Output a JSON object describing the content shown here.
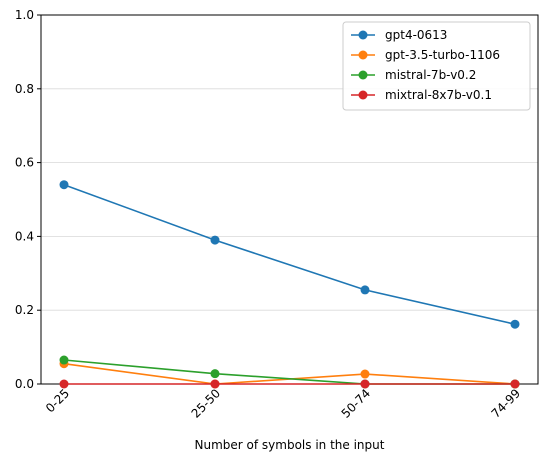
{
  "chart_data": {
    "type": "line",
    "title": "",
    "xlabel": "Number of symbols in the input",
    "ylabel": "",
    "categories": [
      "0-25",
      "25-50",
      "50-74",
      "74-99"
    ],
    "ylim": [
      0,
      1.0
    ],
    "yticks": [
      0.0,
      0.2,
      0.4,
      0.6,
      0.8,
      1.0
    ],
    "ytick_labels": [
      "0.0",
      "0.2",
      "0.4",
      "0.6",
      "0.8",
      "1.0"
    ],
    "grid": "horizontal",
    "legend_position": "top-right",
    "series": [
      {
        "name": "gpt4-0613",
        "color": "#1f77b4",
        "values": [
          0.54,
          0.39,
          0.255,
          0.162
        ]
      },
      {
        "name": "gpt-3.5-turbo-1106",
        "color": "#ff7f0e",
        "values": [
          0.055,
          0.0,
          0.027,
          0.0
        ]
      },
      {
        "name": "mistral-7b-v0.2",
        "color": "#2ca02c",
        "values": [
          0.065,
          0.028,
          0.0,
          0.0
        ]
      },
      {
        "name": "mixtral-8x7b-v0.1",
        "color": "#d62728",
        "values": [
          0.0,
          0.0,
          0.0,
          0.0
        ]
      }
    ]
  }
}
